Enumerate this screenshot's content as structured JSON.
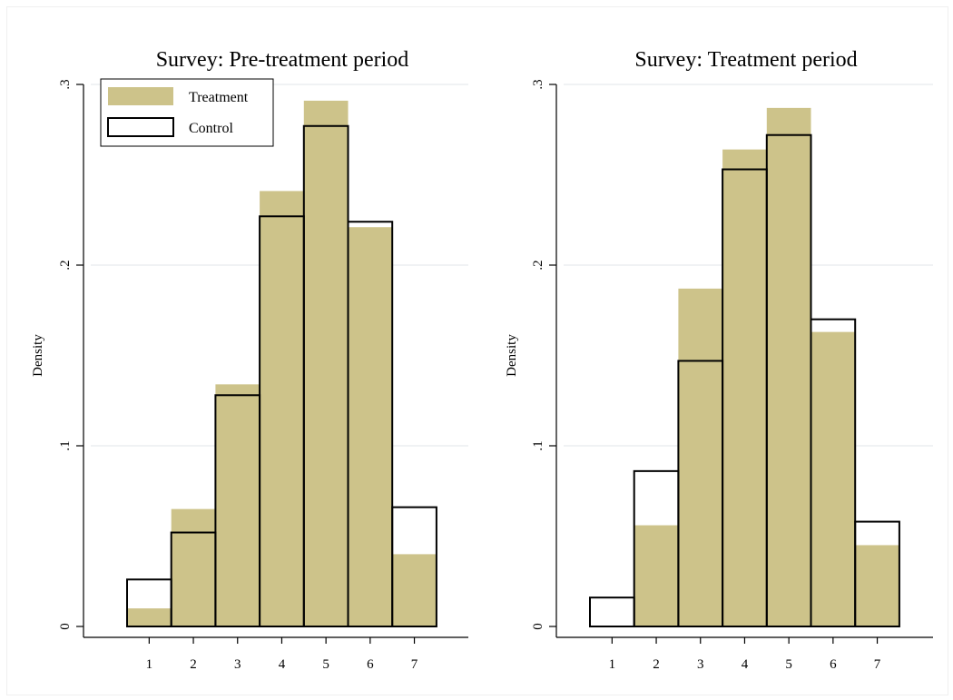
{
  "colors": {
    "treatment_fill": "#cdc38a",
    "control_outline": "#000000",
    "grid": "#e6ebee",
    "background": "#ffffff"
  },
  "legend": {
    "treatment_label": "Treatment",
    "control_label": "Control",
    "placement": "top-left of first panel"
  },
  "chart_data": [
    {
      "type": "bar",
      "title": "Survey: Pre-treatment period",
      "xlabel": "",
      "ylabel": "Density",
      "categories": [
        "1",
        "2",
        "3",
        "4",
        "5",
        "6",
        "7"
      ],
      "ylim": [
        0,
        0.3
      ],
      "yticks": [
        {
          "value": 0,
          "label": "0"
        },
        {
          "value": 0.1,
          "label": ".1"
        },
        {
          "value": 0.2,
          "label": ".2"
        },
        {
          "value": 0.3,
          "label": ".3"
        }
      ],
      "grid": true,
      "series": [
        {
          "name": "Treatment",
          "style": "filled",
          "values": [
            0.01,
            0.065,
            0.134,
            0.241,
            0.291,
            0.221,
            0.04
          ]
        },
        {
          "name": "Control",
          "style": "outline",
          "values": [
            0.026,
            0.052,
            0.128,
            0.227,
            0.277,
            0.224,
            0.066
          ]
        }
      ]
    },
    {
      "type": "bar",
      "title": "Survey: Treatment period",
      "xlabel": "",
      "ylabel": "Density",
      "categories": [
        "1",
        "2",
        "3",
        "4",
        "5",
        "6",
        "7"
      ],
      "ylim": [
        0,
        0.3
      ],
      "yticks": [
        {
          "value": 0,
          "label": "0"
        },
        {
          "value": 0.1,
          "label": ".1"
        },
        {
          "value": 0.2,
          "label": ".2"
        },
        {
          "value": 0.3,
          "label": ".3"
        }
      ],
      "grid": true,
      "series": [
        {
          "name": "Treatment",
          "style": "filled",
          "values": [
            0.0,
            0.056,
            0.187,
            0.264,
            0.287,
            0.163,
            0.045
          ]
        },
        {
          "name": "Control",
          "style": "outline",
          "values": [
            0.016,
            0.086,
            0.147,
            0.253,
            0.272,
            0.17,
            0.058
          ]
        }
      ]
    }
  ]
}
